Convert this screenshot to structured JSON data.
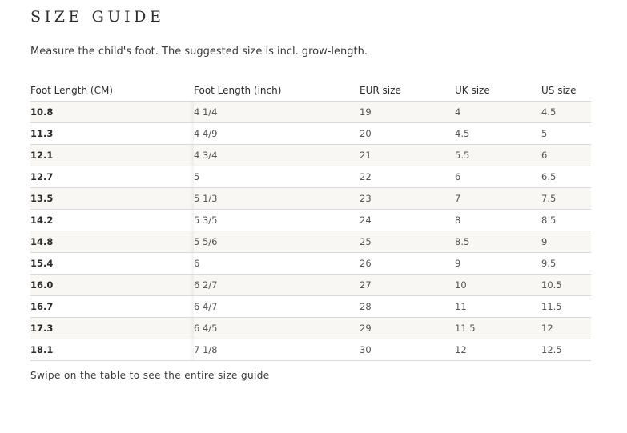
{
  "title": "SIZE GUIDE",
  "intro": "Measure the child's foot. The suggested size is incl. grow-length.",
  "table": {
    "headers": [
      "Foot Length (CM)",
      "Foot Length (inch)",
      "EUR size",
      "UK size",
      "US size"
    ],
    "rows": [
      [
        "10.8",
        "4 1/4",
        "19",
        "4",
        "4.5"
      ],
      [
        "11.3",
        "4 4/9",
        "20",
        "4.5",
        "5"
      ],
      [
        "12.1",
        "4 3/4",
        "21",
        "5.5",
        "6"
      ],
      [
        "12.7",
        "5",
        "22",
        "6",
        "6.5"
      ],
      [
        "13.5",
        "5 1/3",
        "23",
        "7",
        "7.5"
      ],
      [
        "14.2",
        "5 3/5",
        "24",
        "8",
        "8.5"
      ],
      [
        "14.8",
        "5 5/6",
        "25",
        "8.5",
        "9"
      ],
      [
        "15.4",
        "6",
        "26",
        "9",
        "9.5"
      ],
      [
        "16.0",
        "6 2/7",
        "27",
        "10",
        "10.5"
      ],
      [
        "16.7",
        "6 4/7",
        "28",
        "11",
        "11.5"
      ],
      [
        "17.3",
        "6 4/5",
        "29",
        "11.5",
        "12"
      ],
      [
        "18.1",
        "7 1/8",
        "30",
        "12",
        "12.5"
      ]
    ]
  },
  "hint": "Swipe on the table to see the entire size guide",
  "colors": {
    "row_stripe": "#f8f7f3",
    "divider": "#d9d9d9",
    "text": "#2b2b2b"
  }
}
